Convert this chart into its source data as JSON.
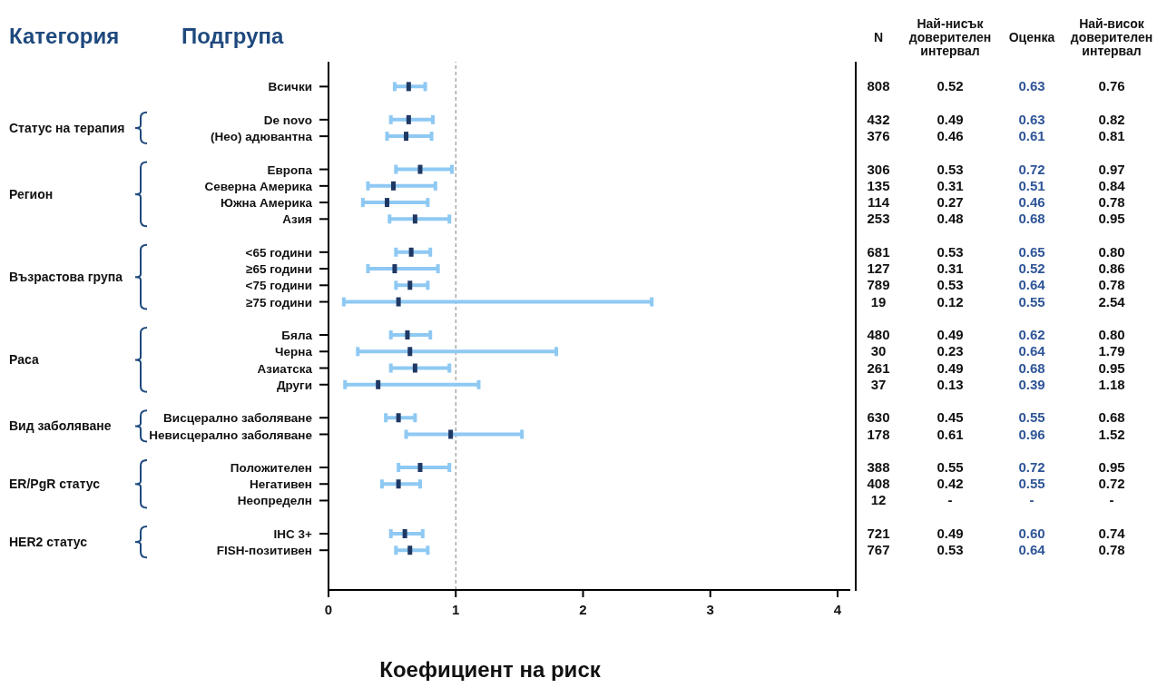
{
  "chart_data": {
    "type": "scatter",
    "orientation": "horizontal",
    "xlabel": "Коефициент на риск",
    "categories": [
      "Всички",
      null,
      "De novo",
      "(Нео) адювантна",
      null,
      "Европа",
      "Северна Америка",
      "Южна Америка",
      "Азия",
      null,
      "<65 години",
      "≥65 години",
      "<75 години",
      "≥75 години",
      null,
      "Бяла",
      "Черна",
      "Азиатска",
      "Други",
      null,
      "Висцерално заболяване",
      "Невисцерално заболяване",
      null,
      "Положителен",
      "Негативен",
      "Неопределн",
      null,
      "IHC 3+",
      "FISH-позитивен"
    ],
    "values": [
      0.63,
      null,
      0.63,
      0.61,
      null,
      0.72,
      0.51,
      0.46,
      0.68,
      null,
      0.65,
      0.52,
      0.64,
      0.55,
      null,
      0.62,
      0.64,
      0.68,
      0.39,
      null,
      0.55,
      0.96,
      null,
      0.72,
      0.55,
      null,
      null,
      0.6,
      0.64
    ],
    "errors": [
      [
        0.52,
        0.76
      ],
      null,
      [
        0.49,
        0.82
      ],
      [
        0.46,
        0.81
      ],
      null,
      [
        0.53,
        0.97
      ],
      [
        0.31,
        0.84
      ],
      [
        0.27,
        0.78
      ],
      [
        0.48,
        0.95
      ],
      null,
      [
        0.53,
        0.8
      ],
      [
        0.31,
        0.86
      ],
      [
        0.53,
        0.78
      ],
      [
        0.12,
        2.54
      ],
      null,
      [
        0.49,
        0.8
      ],
      [
        0.23,
        1.79
      ],
      [
        0.49,
        0.95
      ],
      [
        0.13,
        1.18
      ],
      null,
      [
        0.45,
        0.68
      ],
      [
        0.61,
        1.52
      ],
      null,
      [
        0.55,
        0.95
      ],
      [
        0.42,
        0.72
      ],
      null,
      null,
      [
        0.49,
        0.74
      ],
      [
        0.53,
        0.78
      ]
    ],
    "color": "#1f3864",
    "marker": "square",
    "xlim": [
      0,
      4.1
    ],
    "xticks": [
      0,
      1,
      2,
      3,
      4
    ],
    "ref_lines": [
      {
        "axis": "x",
        "value": 1,
        "color": "#808080",
        "line_style": "dashed"
      }
    ],
    "annotations": [
      "Категория",
      "Подгрупа",
      "N",
      "Най-нисък доверителен интервал",
      "Оценка",
      "Най-висок доверителен интервал",
      "Статус на терапия",
      "Регион",
      "Възрастова група",
      "Раса",
      "Вид заболяване",
      "ER/PgR статус",
      "HER2 статус",
      "808",
      "0.52",
      "0.63",
      "0.76",
      "432",
      "0.49",
      "0.63",
      "0.82",
      "376",
      "0.46",
      "0.61",
      "0.81",
      "306",
      "0.53",
      "0.72",
      "0.97",
      "135",
      "0.31",
      "0.51",
      "0.84",
      "114",
      "0.27",
      "0.46",
      "0.78",
      "253",
      "0.48",
      "0.68",
      "0.95",
      "681",
      "0.53",
      "0.65",
      "0.80",
      "127",
      "0.31",
      "0.52",
      "0.86",
      "789",
      "0.53",
      "0.64",
      "0.78",
      "19",
      "0.12",
      "0.55",
      "2.54",
      "480",
      "0.49",
      "0.62",
      "0.80",
      "30",
      "0.23",
      "0.64",
      "1.79",
      "261",
      "0.49",
      "0.68",
      "0.95",
      "37",
      "0.13",
      "0.39",
      "1.18",
      "630",
      "0.45",
      "0.55",
      "0.68",
      "178",
      "0.61",
      "0.96",
      "1.52",
      "388",
      "0.55",
      "0.72",
      "0.95",
      "408",
      "0.42",
      "0.55",
      "0.72",
      "12",
      "-",
      "-",
      "-",
      "721",
      "0.49",
      "0.60",
      "0.74",
      "767",
      "0.53",
      "0.64",
      "0.78"
    ]
  }
}
